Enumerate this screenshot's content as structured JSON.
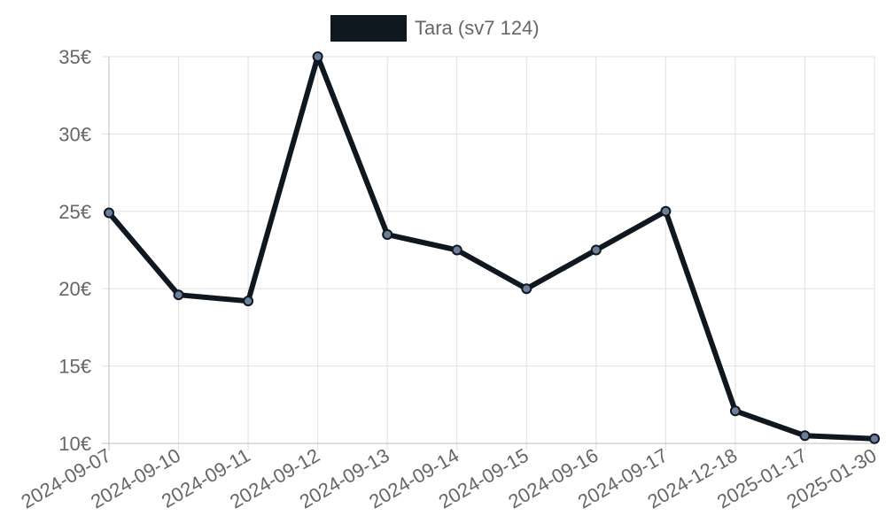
{
  "chart_data": {
    "type": "line",
    "title": "",
    "xlabel": "",
    "ylabel": "",
    "categories": [
      "2024-09-07",
      "2024-09-10",
      "2024-09-11",
      "2024-09-12",
      "2024-09-13",
      "2024-09-14",
      "2024-09-15",
      "2024-09-16",
      "2024-09-17",
      "2024-12-18",
      "2025-01-17",
      "2025-01-30"
    ],
    "series": [
      {
        "name": "Tara (sv7 124)",
        "values": [
          24.9,
          19.6,
          19.2,
          35.0,
          23.5,
          22.5,
          20.0,
          22.5,
          25.0,
          12.1,
          10.5,
          10.3
        ],
        "line_color": "#0f1720",
        "point_fill": "#6b7f99",
        "legend_swatch_color": "#0f1720"
      }
    ],
    "ylim": [
      10,
      35
    ],
    "y_ticks": [
      10,
      15,
      20,
      25,
      30,
      35
    ],
    "y_tick_labels": [
      "10€",
      "15€",
      "20€",
      "25€",
      "30€",
      "35€"
    ],
    "grid": true,
    "legend_position": "top-center"
  }
}
